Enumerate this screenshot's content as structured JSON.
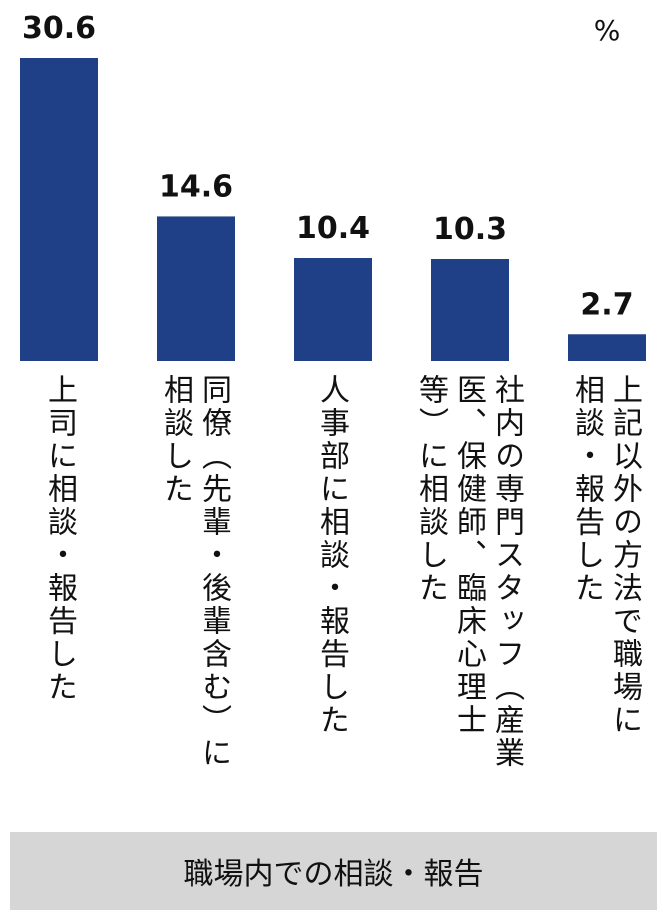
{
  "chart_data": {
    "type": "bar",
    "unit": "%",
    "categories": [
      "上司に相談・報告した",
      "同僚（先輩・後輩含む）に\n相談した",
      "人事部に相談・報告した",
      "社内の専門スタッフ（産業\n医、保健師、臨床心理士\n等）に相談した",
      "上記以外の方法で職場に\n相談・報告した"
    ],
    "values": [
      30.6,
      14.6,
      10.4,
      10.3,
      2.7
    ],
    "value_labels": [
      "30.6",
      "14.6",
      "10.4",
      "10.3",
      "2.7"
    ],
    "ylim": [
      0,
      30.6
    ],
    "bar_color": "#1f3f86",
    "footer_label": "職場内での相談・報告"
  }
}
